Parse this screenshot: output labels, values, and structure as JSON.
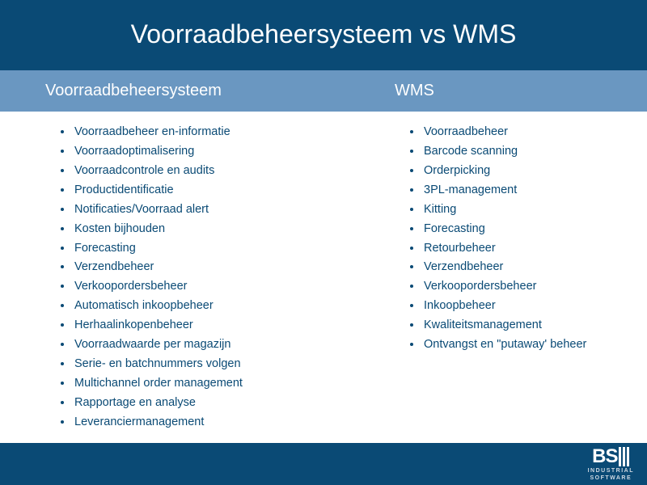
{
  "colors": {
    "header_bg": "#0a4a75",
    "subheader_bg": "#6a97c1",
    "text_light": "#ffffff",
    "text_body": "#0a4a75",
    "logo_sub": "#cfd9e2"
  },
  "title": "Voorraadbeheersysteem vs WMS",
  "columns": {
    "left": {
      "heading": "Voorraadbeheersysteem",
      "items": [
        "Voorraadbeheer en-informatie",
        "Voorraadoptimalisering",
        "Voorraadcontrole en audits",
        "Productidentificatie",
        "Notificaties/Voorraad alert",
        "Kosten bijhouden",
        "Forecasting",
        "Verzendbeheer",
        "Verkoopordersbeheer",
        "Automatisch inkoopbeheer",
        "Herhaalinkopenbeheer",
        "Voorraadwaarde per magazijn",
        "Serie- en batchnummers volgen",
        "Multichannel order management",
        "Rapportage en analyse",
        "Leveranciermanagement"
      ]
    },
    "right": {
      "heading": "WMS",
      "items": [
        "Voorraadbeheer",
        "Barcode scanning",
        "Orderpicking",
        "3PL-management",
        "Kitting",
        "Forecasting",
        "Retourbeheer",
        "Verzendbeheer",
        "Verkoopordersbeheer",
        "Inkoopbeheer",
        "Kwaliteitsmanagement",
        "Ontvangst en \"putaway' beheer"
      ]
    }
  },
  "logo": {
    "main": "BS",
    "sub1": "INDUSTRIAL",
    "sub2": "SOFTWARE"
  }
}
